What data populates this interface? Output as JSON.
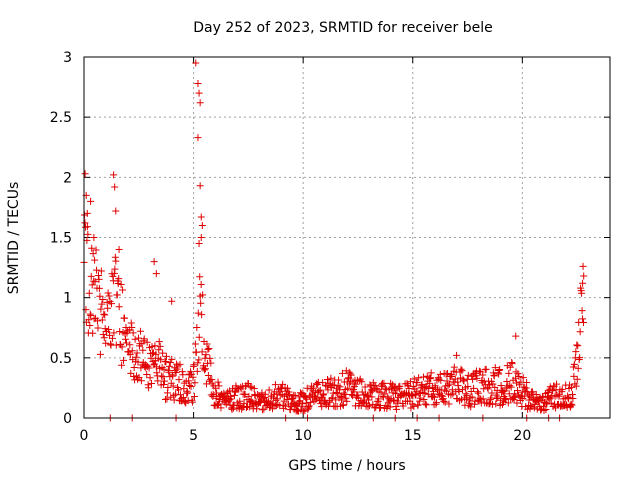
{
  "chart_data": {
    "type": "scatter",
    "title": "Day 252 of 2023, SRMTID for receiver bele",
    "xlabel": "GPS time / hours",
    "ylabel": "SRMTID / TECUs",
    "xlim": [
      0,
      24
    ],
    "ylim": [
      0,
      3
    ],
    "x_ticks": [
      0,
      5,
      10,
      15,
      20
    ],
    "x_tick_labels": [
      "0",
      "5",
      "10",
      "15",
      "20"
    ],
    "y_ticks": [
      0,
      0.5,
      1,
      1.5,
      2,
      2.5,
      3
    ],
    "y_tick_labels": [
      "0",
      "0.5",
      "1",
      "1.5",
      "2",
      "2.5",
      "3"
    ],
    "grid": true,
    "marker": "plus",
    "color": "#e00000",
    "series": [
      {
        "name": "SRMTID",
        "trend": [
          [
            0.0,
            1.3
          ],
          [
            0.3,
            1.15
          ],
          [
            0.6,
            1.0
          ],
          [
            1.0,
            0.85
          ],
          [
            1.3,
            0.9
          ],
          [
            1.5,
            1.0
          ],
          [
            1.8,
            0.7
          ],
          [
            2.2,
            0.55
          ],
          [
            2.6,
            0.5
          ],
          [
            3.0,
            0.45
          ],
          [
            3.4,
            0.45
          ],
          [
            3.8,
            0.35
          ],
          [
            4.3,
            0.3
          ],
          [
            4.7,
            0.22
          ],
          [
            5.0,
            0.3
          ],
          [
            5.3,
            0.9
          ],
          [
            5.6,
            0.45
          ],
          [
            6.0,
            0.2
          ],
          [
            6.5,
            0.15
          ],
          [
            7.0,
            0.17
          ],
          [
            7.5,
            0.18
          ],
          [
            8.0,
            0.13
          ],
          [
            8.5,
            0.16
          ],
          [
            9.0,
            0.2
          ],
          [
            9.5,
            0.12
          ],
          [
            10.0,
            0.14
          ],
          [
            10.5,
            0.18
          ],
          [
            11.0,
            0.2
          ],
          [
            11.5,
            0.22
          ],
          [
            12.0,
            0.25
          ],
          [
            12.5,
            0.22
          ],
          [
            13.0,
            0.2
          ],
          [
            13.5,
            0.19
          ],
          [
            14.0,
            0.18
          ],
          [
            14.5,
            0.17
          ],
          [
            15.0,
            0.2
          ],
          [
            15.5,
            0.22
          ],
          [
            16.0,
            0.25
          ],
          [
            16.5,
            0.23
          ],
          [
            17.0,
            0.28
          ],
          [
            17.5,
            0.22
          ],
          [
            18.0,
            0.25
          ],
          [
            18.5,
            0.28
          ],
          [
            19.0,
            0.25
          ],
          [
            19.5,
            0.3
          ],
          [
            20.0,
            0.22
          ],
          [
            20.5,
            0.13
          ],
          [
            21.0,
            0.12
          ],
          [
            21.5,
            0.2
          ],
          [
            22.0,
            0.17
          ],
          [
            22.3,
            0.25
          ],
          [
            22.5,
            0.4
          ],
          [
            22.7,
            0.85
          ],
          [
            22.8,
            1.0
          ]
        ],
        "spikes": [
          [
            0.05,
            2.03
          ],
          [
            0.1,
            1.85
          ],
          [
            0.15,
            1.7
          ],
          [
            0.3,
            1.8
          ],
          [
            0.45,
            1.5
          ],
          [
            1.35,
            2.02
          ],
          [
            1.4,
            1.92
          ],
          [
            1.45,
            1.72
          ],
          [
            1.6,
            1.4
          ],
          [
            3.2,
            1.3
          ],
          [
            3.3,
            1.2
          ],
          [
            4.0,
            0.97
          ],
          [
            5.1,
            2.95
          ],
          [
            5.2,
            2.78
          ],
          [
            5.25,
            2.7
          ],
          [
            5.3,
            2.62
          ],
          [
            5.2,
            2.33
          ],
          [
            5.3,
            1.93
          ],
          [
            5.35,
            1.67
          ],
          [
            5.4,
            1.6
          ],
          [
            5.25,
            1.45
          ],
          [
            5.35,
            1.5
          ],
          [
            17.0,
            0.52
          ],
          [
            19.7,
            0.68
          ],
          [
            22.8,
            1.18
          ],
          [
            22.75,
            1.12
          ]
        ],
        "zero_points": [
          1.2,
          2.2,
          4.2,
          9.2,
          10.2,
          13.2,
          14.2,
          15.2,
          16.2,
          18.2,
          20.2,
          21.2,
          21.7
        ]
      }
    ]
  }
}
